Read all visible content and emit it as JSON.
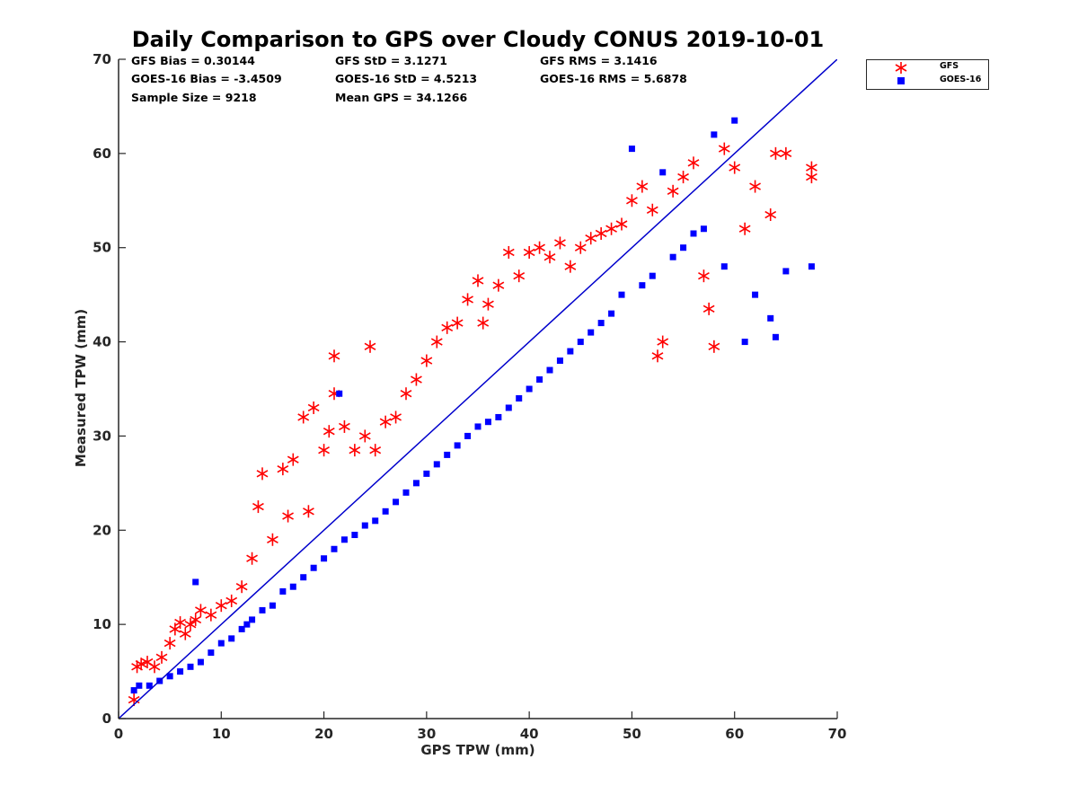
{
  "title": "Daily Comparison to GPS over Cloudy CONUS 2019-10-01",
  "stats": {
    "gfs_bias": "GFS Bias = 0.30144",
    "gfs_std": "GFS StD = 3.1271",
    "gfs_rms": "GFS RMS = 3.1416",
    "goes_bias": "GOES-16 Bias = -3.4509",
    "goes_std": "GOES-16 StD = 4.5213",
    "goes_rms": "GOES-16 RMS = 5.6878",
    "sample_size": "Sample Size = 9218",
    "mean_gps": "Mean GPS = 34.1266"
  },
  "legend": {
    "gfs": "GFS",
    "goes": "GOES-16"
  },
  "colors": {
    "gfs": "#ff0000",
    "goes": "#0000ff",
    "one_to_one_line": "#0000cc",
    "axis": "#262626"
  },
  "chart_data": {
    "type": "scatter",
    "title": "Daily Comparison to GPS over Cloudy CONUS 2019-10-01",
    "xlabel": "GPS TPW (mm)",
    "ylabel": "Measured TPW (mm)",
    "xlim": [
      0,
      70
    ],
    "ylim": [
      0,
      70
    ],
    "xticks": [
      0,
      10,
      20,
      30,
      40,
      50,
      60,
      70
    ],
    "yticks": [
      0,
      10,
      20,
      30,
      40,
      50,
      60,
      70
    ],
    "grid": false,
    "legend_position": "outside-top-right",
    "one_to_one_line": {
      "x": [
        0,
        70
      ],
      "y": [
        0,
        70
      ]
    },
    "series": [
      {
        "name": "GFS",
        "marker": "asterisk",
        "x": [
          1.5,
          1.8,
          2.2,
          2.8,
          3.5,
          4.2,
          5.0,
          5.5,
          6.0,
          6.5,
          7.0,
          7.5,
          8.0,
          9.0,
          10.0,
          11.0,
          12.0,
          13.0,
          13.6,
          14.0,
          15.0,
          16.0,
          16.5,
          17.0,
          18.0,
          18.5,
          19.0,
          20.0,
          20.5,
          21.0,
          21.0,
          22.0,
          23.0,
          24.0,
          24.5,
          25.0,
          26.0,
          27.0,
          28.0,
          29.0,
          30.0,
          31.0,
          32.0,
          33.0,
          34.0,
          35.0,
          35.5,
          36.0,
          37.0,
          38.0,
          39.0,
          40.0,
          41.0,
          42.0,
          43.0,
          44.0,
          45.0,
          46.0,
          47.0,
          48.0,
          49.0,
          50.0,
          51.0,
          52.0,
          52.5,
          53.0,
          54.0,
          55.0,
          56.0,
          57.0,
          57.5,
          58.0,
          59.0,
          60.0,
          61.0,
          62.0,
          63.5,
          64.0,
          65.0,
          67.5,
          67.5
        ],
        "y": [
          2.0,
          5.5,
          5.8,
          6.0,
          5.5,
          6.5,
          8.0,
          9.5,
          10.2,
          9.0,
          10.0,
          10.5,
          11.5,
          11.0,
          12.0,
          12.5,
          14.0,
          17.0,
          22.5,
          26.0,
          19.0,
          26.5,
          21.5,
          27.5,
          32.0,
          22.0,
          33.0,
          28.5,
          30.5,
          38.5,
          34.5,
          31.0,
          28.5,
          30.0,
          39.5,
          28.5,
          31.5,
          32.0,
          34.5,
          36.0,
          38.0,
          40.0,
          41.5,
          42.0,
          44.5,
          46.5,
          42.0,
          44.0,
          46.0,
          49.5,
          47.0,
          49.5,
          50.0,
          49.0,
          50.5,
          48.0,
          50.0,
          51.0,
          51.5,
          52.0,
          52.5,
          55.0,
          56.5,
          54.0,
          38.5,
          40.0,
          56.0,
          57.5,
          59.0,
          47.0,
          43.5,
          39.5,
          60.5,
          58.5,
          52.0,
          56.5,
          53.5,
          60.0,
          60.0,
          58.5,
          57.5
        ]
      },
      {
        "name": "GOES-16",
        "marker": "square",
        "x": [
          1.5,
          2.0,
          3.0,
          4.0,
          5.0,
          6.0,
          7.0,
          7.5,
          8.0,
          9.0,
          10.0,
          11.0,
          12.0,
          12.5,
          13.0,
          14.0,
          15.0,
          16.0,
          17.0,
          18.0,
          19.0,
          20.0,
          21.0,
          21.5,
          22.0,
          23.0,
          24.0,
          25.0,
          26.0,
          27.0,
          28.0,
          29.0,
          30.0,
          31.0,
          32.0,
          33.0,
          34.0,
          35.0,
          36.0,
          37.0,
          38.0,
          39.0,
          40.0,
          41.0,
          42.0,
          43.0,
          44.0,
          45.0,
          46.0,
          47.0,
          48.0,
          49.0,
          50.0,
          51.0,
          52.0,
          53.0,
          54.0,
          55.0,
          56.0,
          57.0,
          58.0,
          59.0,
          60.0,
          61.0,
          62.0,
          63.5,
          64.0,
          65.0,
          67.5
        ],
        "y": [
          3.0,
          3.5,
          3.5,
          4.0,
          4.5,
          5.0,
          5.5,
          14.5,
          6.0,
          7.0,
          8.0,
          8.5,
          9.5,
          10.0,
          10.5,
          11.5,
          12.0,
          13.5,
          14.0,
          15.0,
          16.0,
          17.0,
          18.0,
          34.5,
          19.0,
          19.5,
          20.5,
          21.0,
          22.0,
          23.0,
          24.0,
          25.0,
          26.0,
          27.0,
          28.0,
          29.0,
          30.0,
          31.0,
          31.5,
          32.0,
          33.0,
          34.0,
          35.0,
          36.0,
          37.0,
          38.0,
          39.0,
          40.0,
          41.0,
          42.0,
          43.0,
          45.0,
          60.5,
          46.0,
          47.0,
          58.0,
          49.0,
          50.0,
          51.5,
          52.0,
          62.0,
          48.0,
          63.5,
          40.0,
          45.0,
          42.5,
          40.5,
          47.5,
          48.0
        ]
      }
    ]
  }
}
